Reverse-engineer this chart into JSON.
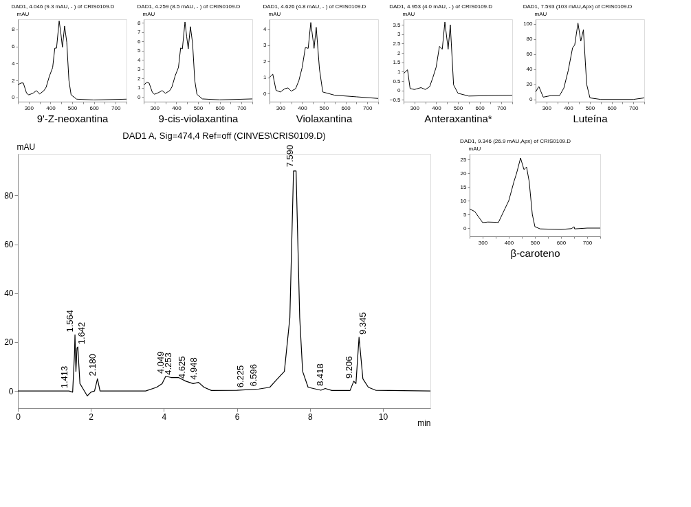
{
  "chart_data": [
    {
      "type": "line",
      "title": "DAD1, 4.046 (9.3 mAU, - ) of CRIS0109.D",
      "xlabel": "9'-Z-neoxantina",
      "ylabel": "mAU",
      "xlim": [
        250,
        750
      ],
      "xticks": [
        {
          "value": 250,
          "label": null
        },
        300,
        {
          "value": 350,
          "label": null
        },
        400,
        {
          "value": 450,
          "label": null
        },
        500,
        {
          "value": 550,
          "label": null
        },
        600,
        {
          "value": 650,
          "label": null
        },
        700,
        {
          "value": 750,
          "label": null
        }
      ],
      "ylim": [
        -0.5,
        9.2
      ],
      "yticks": [
        0,
        2,
        4,
        6,
        8
      ],
      "grid": false,
      "series": [
        {
          "color": "#000000",
          "x": [
            250,
            265,
            275,
            290,
            300,
            320,
            335,
            350,
            370,
            380,
            395,
            410,
            420,
            428,
            440,
            448,
            455,
            465,
            475,
            485,
            495,
            520,
            600,
            750
          ],
          "values": [
            1.5,
            1.7,
            1.7,
            0.5,
            0.3,
            0.5,
            0.8,
            0.4,
            0.8,
            1.2,
            2.5,
            3.5,
            5.8,
            5.8,
            9.0,
            7.5,
            5.9,
            8.4,
            6.5,
            2.0,
            0.3,
            -0.2,
            -0.3,
            -0.2
          ]
        }
      ]
    },
    {
      "type": "line",
      "title": "DAD1, 4.259 (8.5 mAU, - ) of CRIS0109.D",
      "xlabel": "9-cis-violaxantina",
      "ylabel": "mAU",
      "xlim": [
        250,
        750
      ],
      "xticks": [
        {
          "value": 250,
          "label": null
        },
        300,
        {
          "value": 350,
          "label": null
        },
        400,
        {
          "value": 450,
          "label": null
        },
        500,
        {
          "value": 550,
          "label": null
        },
        600,
        {
          "value": 650,
          "label": null
        },
        700,
        {
          "value": 750,
          "label": null
        }
      ],
      "ylim": [
        -0.5,
        8.4
      ],
      "yticks": [
        0,
        1,
        2,
        3,
        4,
        5,
        6,
        7,
        8
      ],
      "grid": false,
      "series": [
        {
          "color": "#000000",
          "x": [
            250,
            265,
            275,
            290,
            300,
            320,
            335,
            350,
            370,
            380,
            395,
            410,
            420,
            428,
            440,
            448,
            455,
            465,
            475,
            485,
            495,
            520,
            600,
            750
          ],
          "values": [
            1.3,
            1.6,
            1.5,
            0.5,
            0.3,
            0.5,
            0.7,
            0.4,
            0.7,
            1.1,
            2.3,
            3.2,
            5.3,
            5.2,
            8.1,
            6.5,
            5.2,
            7.6,
            5.8,
            1.8,
            0.3,
            -0.2,
            -0.3,
            -0.2
          ]
        }
      ]
    },
    {
      "type": "line",
      "title": "DAD1, 4.626 (4.8 mAU, - ) of CRIS0109.D",
      "xlabel": "Violaxantina",
      "ylabel": "mAU",
      "xlim": [
        250,
        750
      ],
      "xticks": [
        {
          "value": 250,
          "label": null
        },
        300,
        {
          "value": 350,
          "label": null
        },
        400,
        {
          "value": 450,
          "label": null
        },
        500,
        {
          "value": 550,
          "label": null
        },
        600,
        {
          "value": 650,
          "label": null
        },
        700,
        {
          "value": 750,
          "label": null
        }
      ],
      "ylim": [
        -0.5,
        4.6
      ],
      "yticks": [
        0,
        1,
        2,
        3,
        4
      ],
      "grid": false,
      "series": [
        {
          "color": "#000000",
          "x": [
            250,
            265,
            280,
            300,
            320,
            335,
            350,
            370,
            385,
            400,
            415,
            428,
            440,
            455,
            465,
            480,
            495,
            550,
            650,
            750
          ],
          "values": [
            1.0,
            1.2,
            0.2,
            0.1,
            0.3,
            0.35,
            0.15,
            0.3,
            0.8,
            1.6,
            2.85,
            2.8,
            4.4,
            2.8,
            4.1,
            1.5,
            0.1,
            -0.1,
            -0.2,
            -0.3
          ]
        }
      ]
    },
    {
      "type": "line",
      "title": "DAD1, 4.953 (4.0 mAU, - ) of CRIS0109.D",
      "xlabel": "Anteraxantina*",
      "ylabel": "mAU",
      "xlim": [
        250,
        750
      ],
      "xticks": [
        {
          "value": 250,
          "label": null
        },
        300,
        {
          "value": 350,
          "label": null
        },
        400,
        {
          "value": 450,
          "label": null
        },
        500,
        {
          "value": 550,
          "label": null
        },
        600,
        {
          "value": 650,
          "label": null
        },
        700,
        {
          "value": 750,
          "label": null
        }
      ],
      "ylim": [
        -0.6,
        3.8
      ],
      "yticks": [
        -0.5,
        0,
        0.5,
        1,
        1.5,
        2,
        2.5,
        3,
        3.5
      ],
      "grid": false,
      "series": [
        {
          "color": "#000000",
          "x": [
            250,
            268,
            280,
            300,
            330,
            350,
            370,
            385,
            400,
            415,
            428,
            440,
            455,
            465,
            480,
            500,
            550,
            750
          ],
          "values": [
            0.9,
            1.1,
            0.1,
            0.05,
            0.15,
            0.05,
            0.2,
            0.7,
            1.25,
            2.35,
            2.2,
            3.65,
            2.2,
            3.5,
            0.3,
            -0.15,
            -0.3,
            -0.25
          ]
        }
      ]
    },
    {
      "type": "line",
      "title": "DAD1, 7.593 (103 mAU,Apx) of CRIS0109.D",
      "xlabel": "Luteína",
      "ylabel": "mAU",
      "xlim": [
        250,
        750
      ],
      "xticks": [
        {
          "value": 250,
          "label": null
        },
        300,
        {
          "value": 350,
          "label": null
        },
        400,
        {
          "value": 450,
          "label": null
        },
        500,
        {
          "value": 550,
          "label": null
        },
        600,
        {
          "value": 650,
          "label": null
        },
        700,
        {
          "value": 750,
          "label": null
        }
      ],
      "ylim": [
        -3,
        106
      ],
      "yticks": [
        0,
        20,
        40,
        60,
        80,
        100
      ],
      "grid": false,
      "series": [
        {
          "color": "#000000",
          "x": [
            250,
            265,
            285,
            320,
            360,
            380,
            400,
            420,
            430,
            445,
            458,
            470,
            485,
            500,
            550,
            700,
            750
          ],
          "values": [
            10,
            17,
            3,
            5,
            5,
            15,
            38,
            68,
            72,
            101,
            77,
            92,
            20,
            2,
            0,
            0,
            2
          ]
        }
      ]
    },
    {
      "type": "line",
      "title": "DAD1, 9.346 (26.9 mAU,Apx) of CRIS0109.D",
      "xlabel": "β-caroteno",
      "ylabel": "mAU",
      "xlim": [
        250,
        750
      ],
      "xticks": [
        {
          "value": 250,
          "label": null
        },
        300,
        {
          "value": 350,
          "label": null
        },
        400,
        {
          "value": 450,
          "label": null
        },
        500,
        {
          "value": 550,
          "label": null
        },
        600,
        {
          "value": 650,
          "label": null
        },
        700,
        {
          "value": 750,
          "label": null
        }
      ],
      "ylim": [
        -3,
        27
      ],
      "yticks": [
        0,
        5,
        10,
        15,
        20,
        25
      ],
      "grid": false,
      "series": [
        {
          "color": "#000000",
          "x": [
            250,
            270,
            300,
            320,
            355,
            360,
            380,
            400,
            420,
            430,
            445,
            458,
            468,
            478,
            490,
            500,
            520,
            600,
            640,
            650,
            652,
            700,
            750
          ],
          "values": [
            7,
            6,
            2,
            2.2,
            2.1,
            2,
            6,
            10,
            17,
            20,
            25.5,
            21.3,
            22.2,
            17,
            5,
            0.5,
            -0.3,
            -0.5,
            -0.2,
            0.5,
            -0.3,
            0,
            0
          ]
        }
      ]
    },
    {
      "type": "line",
      "title": "DAD1 A, Sig=474,4 Ref=off (CINVES\\CRIS0109.D)",
      "xlabel": "min",
      "ylabel": "mAU",
      "xlim": [
        0,
        11.3
      ],
      "xticks": [
        0,
        2,
        4,
        6,
        8,
        10
      ],
      "ylim": [
        -7,
        97
      ],
      "yticks": [
        0,
        20,
        40,
        60,
        80
      ],
      "grid": false,
      "series": [
        {
          "color": "#000000",
          "x": [
            0,
            1.4,
            1.5,
            1.55,
            1.564,
            1.59,
            1.62,
            1.642,
            1.7,
            1.8,
            1.9,
            2.0,
            2.1,
            2.18,
            2.25,
            3.5,
            3.8,
            3.95,
            4.05,
            4.2,
            4.4,
            4.6,
            4.8,
            4.95,
            5.1,
            5.3,
            6.0,
            6.6,
            6.9,
            7.05,
            7.3,
            7.45,
            7.55,
            7.62,
            7.72,
            7.8,
            7.95,
            8.3,
            8.42,
            8.6,
            9.1,
            9.2,
            9.26,
            9.345,
            9.45,
            9.6,
            9.8,
            11.3
          ],
          "values": [
            0,
            0,
            -0.5,
            15,
            23,
            8,
            17.6,
            18,
            3,
            0.5,
            -2,
            -0.5,
            0,
            5,
            0,
            0,
            1.5,
            3,
            6,
            5.5,
            5.5,
            4,
            3,
            3.5,
            1.5,
            0.2,
            0.3,
            0.8,
            1.5,
            4,
            8,
            30,
            90,
            90,
            30,
            8,
            1.5,
            0.3,
            1,
            0.2,
            0.2,
            4,
            3,
            22,
            5,
            1.5,
            0.3,
            0
          ]
        }
      ],
      "annotations": [
        {
          "text": "1.413",
          "x": 1.413,
          "y": 0.5
        },
        {
          "text": "1.564",
          "x": 1.564,
          "y": 23.5
        },
        {
          "text": "1.642",
          "x": 1.642,
          "y": 18.5
        },
        {
          "text": "2.180",
          "x": 2.18,
          "y": 5.5
        },
        {
          "text": "4.049",
          "x": 4.049,
          "y": 6.5
        },
        {
          "text": "4.253",
          "x": 4.253,
          "y": 6
        },
        {
          "text": "4.625",
          "x": 4.625,
          "y": 4.5
        },
        {
          "text": "4.948",
          "x": 4.948,
          "y": 4
        },
        {
          "text": "6.225",
          "x": 6.225,
          "y": 0.8
        },
        {
          "text": "6.596",
          "x": 6.596,
          "y": 1.3
        },
        {
          "text": "7.590",
          "x": 7.59,
          "y": 91
        },
        {
          "text": "8.418",
          "x": 8.418,
          "y": 1.5
        },
        {
          "text": "9.206",
          "x": 9.206,
          "y": 4.5
        },
        {
          "text": "9.345",
          "x": 9.345,
          "y": 22.5
        }
      ]
    }
  ]
}
